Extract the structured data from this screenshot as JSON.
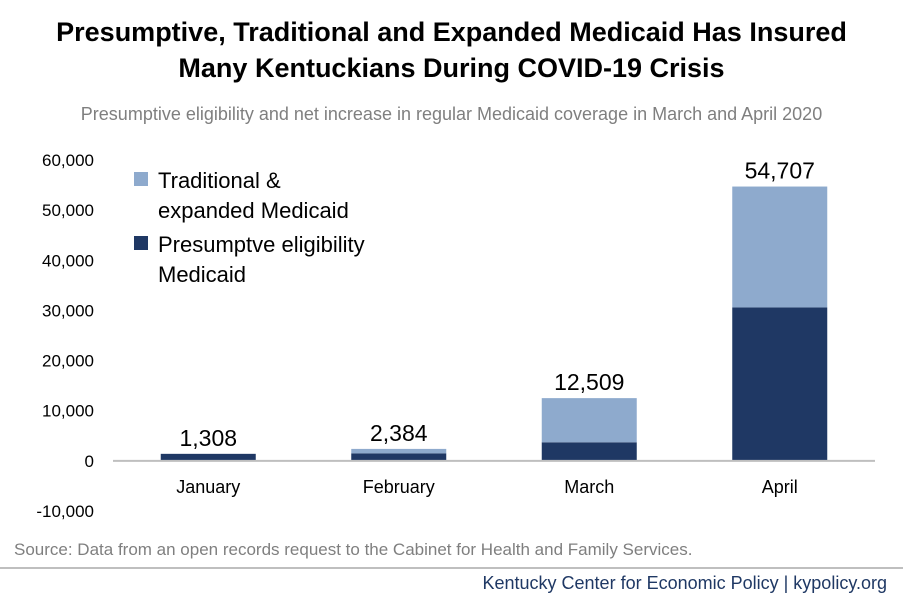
{
  "chart_data": {
    "type": "bar",
    "stacked": true,
    "title": "Presumptive, Traditional and Expanded Medicaid Has Insured Many Kentuckians During COVID-19 Crisis",
    "subtitle": "Presumptive eligibility and net increase in regular Medicaid coverage in March and April 2020",
    "categories": [
      "January",
      "February",
      "March",
      "April"
    ],
    "series": [
      {
        "name": "Presumptve eligibility Medicaid",
        "legend_lines": [
          "Presumptve eligibility",
          "Medicaid"
        ],
        "color": "#1f3864",
        "values": [
          1400,
          1500,
          3700,
          30600
        ]
      },
      {
        "name": "Traditional & expanded Medicaid",
        "legend_lines": [
          "Traditional &",
          "expanded Medicaid"
        ],
        "color": "#8eaacd",
        "values": [
          -92,
          884,
          8809,
          24107
        ]
      }
    ],
    "totals": [
      "1,308",
      "2,384",
      "12,509",
      "54,707"
    ],
    "yticks": [
      60000,
      50000,
      40000,
      30000,
      20000,
      10000,
      0,
      -10000
    ],
    "ytick_labels": [
      "60,000",
      "50,000",
      "40,000",
      "30,000",
      "20,000",
      "10,000",
      "0",
      "-10,000"
    ],
    "ylim": [
      -10000,
      60000
    ],
    "legend_position": "top-left",
    "grid": false
  },
  "source": "Source: Data from an open records request to the Cabinet for Health and Family Services.",
  "footer": "Kentucky Center for Economic Policy | kypolicy.org"
}
